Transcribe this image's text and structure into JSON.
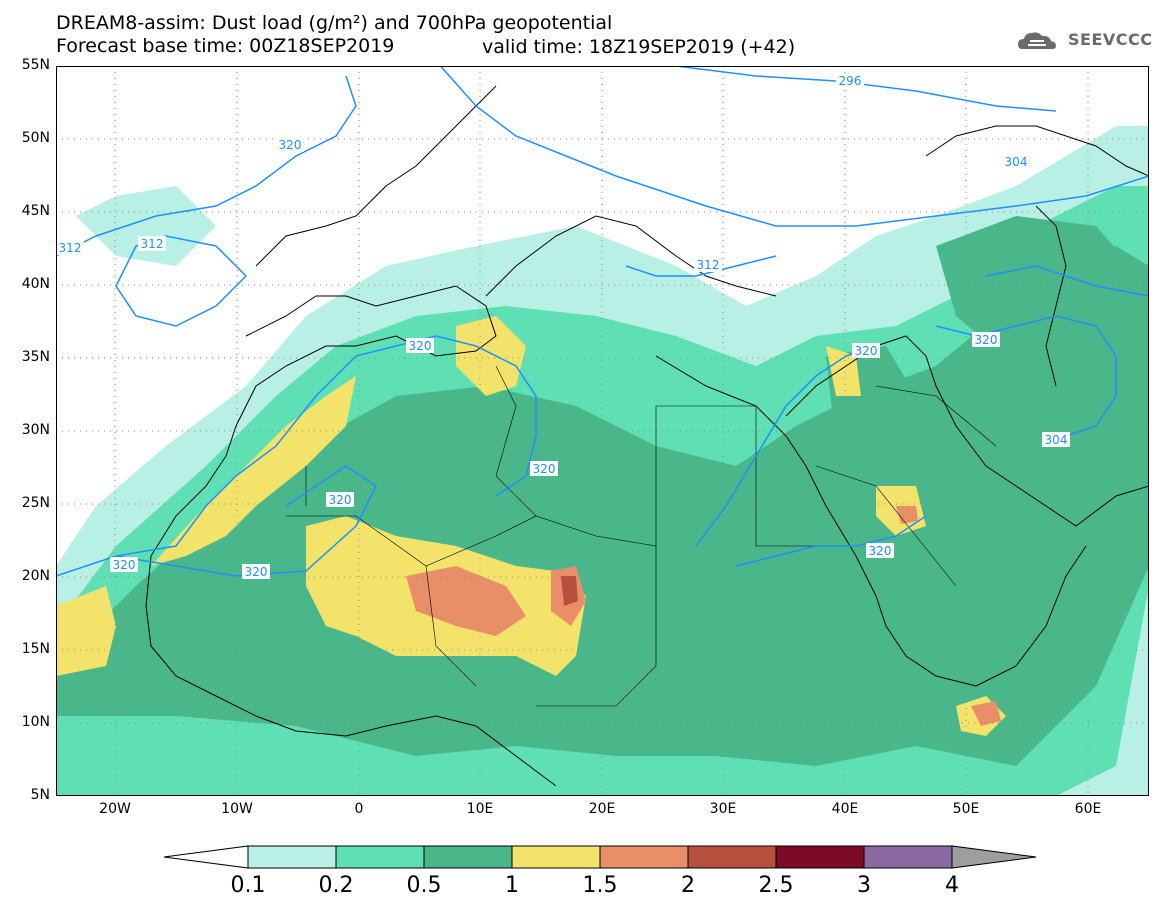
{
  "header": {
    "title_line1": "DREAM8-assim: Dust load (g/m²) and 700hPa geopotential",
    "title_line2": "Forecast base time: 00Z18SEP2019",
    "valid_time": "valid time: 18Z19SEP2019 (+42)"
  },
  "logo": {
    "text": "SEEVCCC",
    "icon": "cloud-icon"
  },
  "map": {
    "projection": "cylindrical",
    "lon_range": [
      -25,
      65
    ],
    "lat_range": [
      5,
      55
    ],
    "lat_labels": [
      "55N",
      "50N",
      "45N",
      "40N",
      "35N",
      "30N",
      "25N",
      "20N",
      "15N",
      "10N",
      "5N"
    ],
    "lon_labels": [
      "20W",
      "10W",
      "0",
      "10E",
      "20E",
      "30E",
      "40E",
      "50E",
      "60E"
    ],
    "contour_labels": [
      "296",
      "304",
      "312",
      "312",
      "320",
      "320",
      "320",
      "320",
      "320",
      "320",
      "320",
      "320",
      "312",
      "320",
      "304"
    ],
    "colors": {
      "coast": "#000000",
      "contour": "#1e90ff",
      "grid": "#888888"
    }
  },
  "colorbar": {
    "labels": [
      "0.1",
      "0.2",
      "0.5",
      "1",
      "1.5",
      "2",
      "2.5",
      "3",
      "4"
    ],
    "colors": [
      "#ffffff",
      "#b9f0e6",
      "#5ee0b4",
      "#49b78a",
      "#f4e36a",
      "#e88f6a",
      "#b8503e",
      "#7c0c26",
      "#8a6aa0",
      "#9e9e9e"
    ]
  }
}
